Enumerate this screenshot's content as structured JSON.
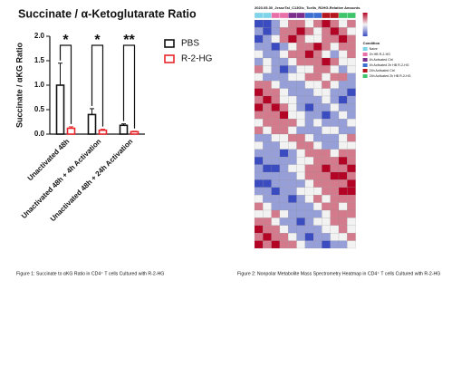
{
  "chart_data": [
    {
      "type": "bar",
      "title": "Succinate / α-Ketoglutarate Ratio",
      "y_label": "Succinate / αKG Ratio",
      "categories": [
        "Unactivated 48h",
        "Unactivated 48h + 4h Activation",
        "Unactivated 48h + 24h Activation"
      ],
      "series": [
        {
          "name": "PBS",
          "color": "#111111",
          "values": [
            1.0,
            0.4,
            0.18
          ],
          "errors": [
            0.45,
            0.12,
            0.03
          ]
        },
        {
          "name": "R-2-HG",
          "color": "#e8262b",
          "values": [
            0.12,
            0.08,
            0.05
          ],
          "errors": [
            0.03,
            0.02,
            0.01
          ]
        }
      ],
      "annotations": [
        "*",
        "*",
        "**"
      ],
      "ylim": [
        0,
        2.0
      ],
      "yticks": [
        {
          "value": 0,
          "label": "0.0"
        },
        {
          "value": 0.5,
          "label": "0.5"
        },
        {
          "value": 1,
          "label": "1.0"
        },
        {
          "value": 1.5,
          "label": "1.5"
        },
        {
          "value": 2,
          "label": "2.0"
        }
      ]
    },
    {
      "type": "heatmap",
      "title": "2023.05.30_JesseTal_C13Glc_Tcells_R2HG-Relative Amounts",
      "legend_title": "Condition",
      "legend": [
        {
          "name": "Naive",
          "color": "#7fd3e8"
        },
        {
          "name": "2h HB R-2-HG",
          "color": "#e86fa8"
        },
        {
          "name": "4h Activated Ctrl",
          "color": "#7b2d8e"
        },
        {
          "name": "4h Activated 2h HB R-2-HG",
          "color": "#3b6fd1"
        },
        {
          "name": "24h Activated Ctrl",
          "color": "#b5161d"
        },
        {
          "name": "24h Activated 2h HB R-2-HG",
          "color": "#3ec46b"
        }
      ],
      "column_conditions": [
        0,
        0,
        1,
        1,
        2,
        2,
        3,
        3,
        4,
        4,
        5,
        5
      ],
      "zlim": [
        -2,
        2
      ],
      "low_color": "#3b4cc0",
      "mid_color": "#f2f2f2",
      "high_color": "#b40426",
      "values": [
        [
          -2,
          -2,
          -1,
          0,
          1,
          1,
          0,
          1,
          2,
          1,
          0,
          1
        ],
        [
          -1,
          -2,
          -1,
          1,
          1,
          2,
          1,
          0,
          1,
          2,
          1,
          0
        ],
        [
          -2,
          -1,
          0,
          1,
          2,
          1,
          0,
          0,
          1,
          1,
          2,
          1
        ],
        [
          -1,
          -1,
          -2,
          -1,
          0,
          1,
          1,
          2,
          1,
          0,
          1,
          1
        ],
        [
          0,
          -1,
          -1,
          0,
          1,
          1,
          2,
          1,
          0,
          -1,
          0,
          1
        ],
        [
          -1,
          0,
          -1,
          -1,
          0,
          1,
          1,
          1,
          2,
          1,
          0,
          0
        ],
        [
          1,
          0,
          -1,
          -2,
          -1,
          0,
          0,
          1,
          1,
          0,
          -1,
          0
        ],
        [
          0,
          -1,
          -1,
          -1,
          0,
          0,
          1,
          1,
          0,
          1,
          1,
          -1
        ],
        [
          1,
          1,
          0,
          -1,
          -1,
          -1,
          0,
          0,
          1,
          0,
          -1,
          -1
        ],
        [
          2,
          1,
          1,
          0,
          -1,
          -1,
          -1,
          0,
          0,
          -1,
          -1,
          -2
        ],
        [
          1,
          2,
          1,
          0,
          0,
          -1,
          -1,
          -1,
          0,
          -1,
          -2,
          -1
        ],
        [
          2,
          1,
          2,
          1,
          0,
          -1,
          -2,
          -1,
          -1,
          0,
          -1,
          -1
        ],
        [
          1,
          1,
          1,
          2,
          0,
          0,
          -1,
          -1,
          -2,
          -1,
          0,
          -1
        ],
        [
          0,
          1,
          1,
          1,
          1,
          0,
          -1,
          0,
          -1,
          -1,
          -1,
          0
        ],
        [
          1,
          0,
          1,
          1,
          0,
          -1,
          -1,
          -1,
          0,
          0,
          -1,
          -1
        ],
        [
          -1,
          -1,
          0,
          0,
          1,
          1,
          0,
          -1,
          -1,
          -1,
          0,
          1
        ],
        [
          0,
          -1,
          -1,
          0,
          0,
          1,
          1,
          0,
          -1,
          -1,
          0,
          0
        ],
        [
          -1,
          -1,
          -1,
          -2,
          -1,
          0,
          1,
          1,
          1,
          0,
          1,
          1
        ],
        [
          -2,
          -1,
          -1,
          -1,
          -1,
          0,
          0,
          1,
          1,
          1,
          2,
          1
        ],
        [
          -1,
          -2,
          -2,
          -1,
          0,
          0,
          1,
          1,
          2,
          1,
          1,
          2
        ],
        [
          -1,
          -1,
          -1,
          -1,
          -1,
          0,
          1,
          1,
          1,
          2,
          2,
          1
        ],
        [
          -2,
          -2,
          -1,
          -1,
          -1,
          -1,
          0,
          1,
          1,
          1,
          1,
          2
        ],
        [
          -1,
          -1,
          -2,
          -1,
          -1,
          0,
          0,
          0,
          1,
          1,
          2,
          2
        ],
        [
          0,
          -1,
          -1,
          -1,
          -2,
          -1,
          0,
          1,
          0,
          1,
          1,
          1
        ],
        [
          1,
          0,
          -1,
          -1,
          -1,
          -1,
          -1,
          0,
          1,
          1,
          0,
          1
        ],
        [
          0,
          0,
          1,
          0,
          -1,
          -1,
          -1,
          -1,
          0,
          1,
          1,
          1
        ],
        [
          1,
          1,
          0,
          -1,
          -1,
          -2,
          -1,
          0,
          0,
          1,
          1,
          0
        ],
        [
          2,
          1,
          1,
          0,
          -1,
          -1,
          -1,
          -1,
          0,
          0,
          1,
          0
        ],
        [
          1,
          2,
          1,
          1,
          0,
          -1,
          -2,
          -1,
          -1,
          0,
          0,
          1
        ],
        [
          2,
          1,
          2,
          1,
          1,
          0,
          -1,
          -1,
          -2,
          -1,
          -1,
          0
        ]
      ]
    }
  ],
  "captions": [
    "Figure 1: Succinate to αKG Ratio in CD4⁺ T cells Cultured with R-2-HG",
    "Figure 2: Nonpolar Metabolite Mass Spectrometry Heatmap in CD4⁺ T cells Cultured with R-2-HG"
  ]
}
